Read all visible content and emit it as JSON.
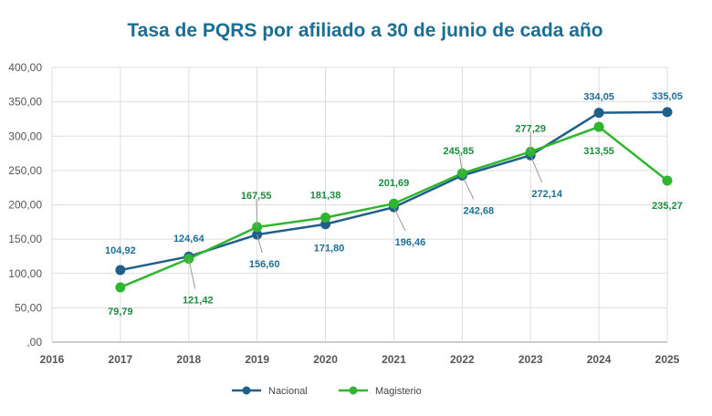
{
  "chart_data": {
    "type": "line",
    "title": "Tasa de PQRS por afiliado a 30 de junio de cada año",
    "xlabel": "",
    "ylabel": "",
    "x": [
      2016,
      2017,
      2018,
      2019,
      2020,
      2021,
      2022,
      2023,
      2024,
      2025
    ],
    "x_tick_labels": [
      "2016",
      "2017",
      "2018",
      "2019",
      "2020",
      "2021",
      "2022",
      "2023",
      "2024",
      "2025"
    ],
    "ylim": [
      0,
      400
    ],
    "y_tick_labels": [
      ",00",
      "50,00",
      "100,00",
      "150,00",
      "200,00",
      "250,00",
      "300,00",
      "350,00",
      "400,00"
    ],
    "grid": true,
    "legend": "bottom",
    "series": [
      {
        "name": "Nacional",
        "color": "#1f5f8b",
        "label_color": "#1f6f95",
        "x": [
          2017,
          2018,
          2019,
          2020,
          2021,
          2022,
          2023,
          2024,
          2025
        ],
        "values": [
          104.92,
          124.64,
          156.6,
          171.8,
          196.46,
          242.68,
          272.14,
          334.05,
          335.05
        ],
        "labels": [
          "104,92",
          "124,64",
          "156,60",
          "171,80",
          "196,46",
          "242,68",
          "272,14",
          "334,05",
          "335,05"
        ]
      },
      {
        "name": "Magisterio",
        "color": "#2fb52f",
        "label_color": "#1e8a3e",
        "x": [
          2017,
          2018,
          2019,
          2020,
          2021,
          2022,
          2023,
          2024,
          2025
        ],
        "values": [
          79.79,
          121.42,
          167.55,
          181.38,
          201.69,
          245.85,
          277.29,
          313.55,
          235.27
        ],
        "labels": [
          "79,79",
          "121,42",
          "167,55",
          "181,38",
          "201,69",
          "245,85",
          "277,29",
          "313,55",
          "235,27"
        ]
      }
    ]
  }
}
